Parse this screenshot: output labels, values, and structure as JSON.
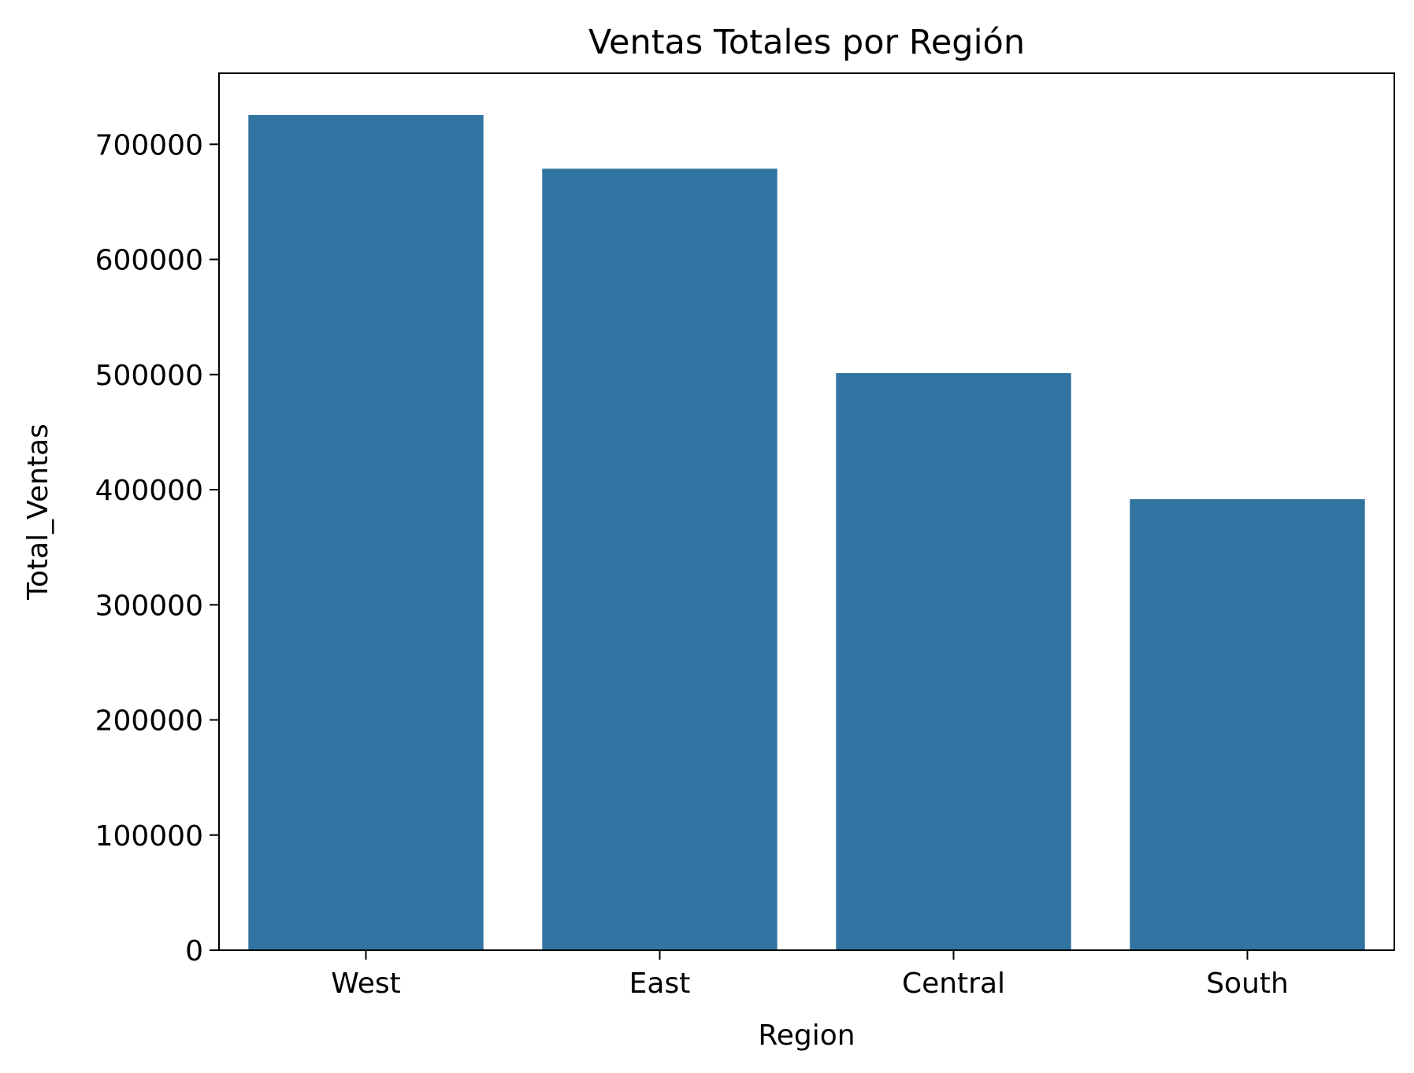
{
  "chart_data": {
    "type": "bar",
    "title": "Ventas Totales por Región",
    "xlabel": "Region",
    "ylabel": "Total_Ventas",
    "categories": [
      "West",
      "East",
      "Central",
      "South"
    ],
    "values": [
      725458,
      678781,
      501240,
      391722
    ],
    "ylim": [
      0,
      761731
    ],
    "yticks": [
      0,
      100000,
      200000,
      300000,
      400000,
      500000,
      600000,
      700000
    ],
    "ytick_labels": [
      "0",
      "100000",
      "200000",
      "300000",
      "400000",
      "500000",
      "600000",
      "700000"
    ],
    "bar_color": "#3274a1",
    "grid": false,
    "legend": "none"
  }
}
